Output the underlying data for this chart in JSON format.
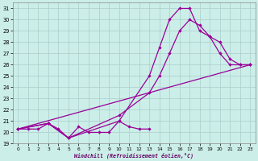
{
  "xlabel": "Windchill (Refroidissement éolien,°C)",
  "bg_color": "#cceee8",
  "grid_color": "#aacccc",
  "line_color": "#990099",
  "xlim": [
    -0.5,
    23.5
  ],
  "ylim": [
    19,
    31.5
  ],
  "yticks": [
    19,
    20,
    21,
    22,
    23,
    24,
    25,
    26,
    27,
    28,
    29,
    30,
    31
  ],
  "xticks": [
    0,
    1,
    2,
    3,
    4,
    5,
    6,
    7,
    8,
    9,
    10,
    11,
    12,
    13,
    14,
    15,
    16,
    17,
    18,
    19,
    20,
    21,
    22,
    23
  ],
  "series1_x": [
    0,
    3,
    5,
    10,
    13,
    14,
    15,
    16,
    17,
    18,
    19,
    20,
    21,
    22,
    23
  ],
  "series1_y": [
    20.3,
    20.8,
    19.5,
    21.0,
    25.0,
    27.5,
    30.0,
    31.0,
    31.0,
    29.0,
    28.5,
    28.0,
    26.5,
    26.0,
    26.0
  ],
  "series2_x": [
    0,
    3,
    5,
    10,
    13,
    14,
    15,
    16,
    17,
    18,
    19,
    20,
    21,
    22,
    23
  ],
  "series2_y": [
    20.3,
    20.8,
    19.5,
    21.5,
    23.5,
    25.0,
    27.0,
    29.0,
    30.0,
    29.5,
    28.5,
    27.0,
    26.0,
    26.0,
    26.0
  ],
  "series3_x": [
    0,
    23
  ],
  "series3_y": [
    20.3,
    26.0
  ],
  "series4_x": [
    0,
    1,
    2,
    3,
    4,
    5,
    6,
    7,
    8,
    9,
    10,
    11,
    12,
    13
  ],
  "series4_y": [
    20.3,
    20.3,
    20.3,
    20.8,
    20.3,
    19.5,
    20.5,
    20.0,
    20.0,
    20.0,
    21.0,
    20.5,
    20.3,
    20.3
  ]
}
